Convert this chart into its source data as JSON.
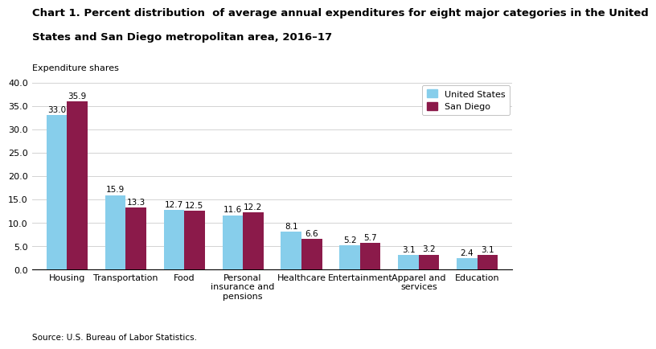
{
  "title_line1": "Chart 1. Percent distribution  of average annual expenditures for eight major categories in the United",
  "title_line2": "States and San Diego metropolitan area, 2016–17",
  "ylabel": "Expenditure shares",
  "source": "Source: U.S. Bureau of Labor Statistics.",
  "categories": [
    "Housing",
    "Transportation",
    "Food",
    "Personal\ninsurance and\npensions",
    "Healthcare",
    "Entertainment",
    "Apparel and\nservices",
    "Education"
  ],
  "us_values": [
    33.0,
    15.9,
    12.7,
    11.6,
    8.1,
    5.2,
    3.1,
    2.4
  ],
  "sd_values": [
    35.9,
    13.3,
    12.5,
    12.2,
    6.6,
    5.7,
    3.2,
    3.1
  ],
  "us_color": "#87CEEB",
  "sd_color": "#8B1A4A",
  "ylim": [
    0,
    40
  ],
  "yticks": [
    0.0,
    5.0,
    10.0,
    15.0,
    20.0,
    25.0,
    30.0,
    35.0,
    40.0
  ],
  "legend_labels": [
    "United States",
    "San Diego"
  ],
  "bar_width": 0.35,
  "title_fontsize": 9.5,
  "label_fontsize": 8,
  "tick_fontsize": 8,
  "value_fontsize": 7.5
}
